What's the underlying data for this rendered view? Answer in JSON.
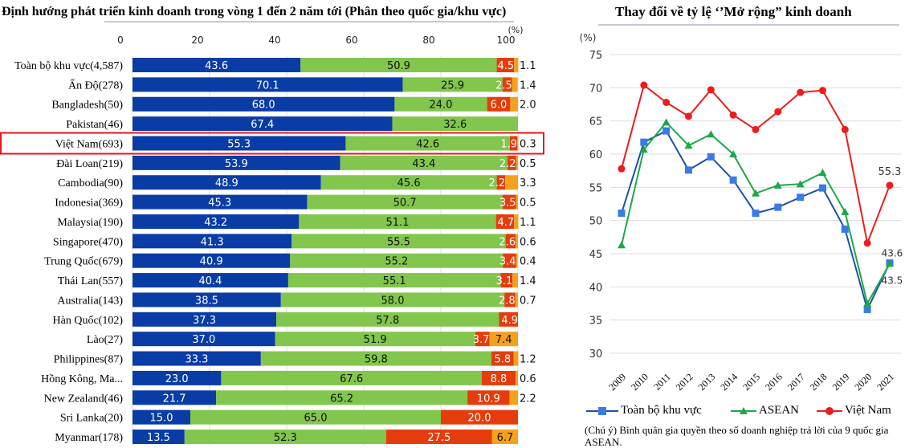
{
  "chart_data": [
    {
      "type": "bar",
      "stacked": true,
      "orientation": "horizontal",
      "title": "Định hướng phát triển kinh doanh trong vòng 1 đến 2 năm tới (Phân theo quốc gia/khu vực)",
      "unit_label": "(%)",
      "xlim": [
        0,
        100
      ],
      "xticks": [
        "0",
        "20",
        "40",
        "60",
        "80",
        "100"
      ],
      "highlight": "Việt Nam(693)",
      "colors": [
        "#0a3ca6",
        "#82c64d",
        "#e43c0c",
        "#f4a11c"
      ],
      "categories": [
        "Toàn bộ khu vực(4,587)",
        "Ấn Độ(278)",
        "Bangladesh(50)",
        "Pakistan(46)",
        "Việt Nam(693)",
        "Đài Loan(219)",
        "Cambodia(90)",
        "Indonesia(369)",
        "Malaysia(190)",
        "Singapore(470)",
        "Trung Quốc(679)",
        "Thái Lan(557)",
        "Australia(143)",
        "Hàn Quốc(102)",
        "Lào(27)",
        "Philippines(87)",
        "Hồng Kông, Ma...",
        "New Zealand(46)",
        "Sri Lanka(20)",
        "Myanmar(178)"
      ],
      "series": [
        {
          "values": [
            43.6,
            70.1,
            68.0,
            67.4,
            55.3,
            53.9,
            48.9,
            45.3,
            43.2,
            41.3,
            40.9,
            40.4,
            38.5,
            37.3,
            37.0,
            33.3,
            23.0,
            21.7,
            15.0,
            13.5
          ]
        },
        {
          "values": [
            50.9,
            25.9,
            24.0,
            32.6,
            42.6,
            43.4,
            45.6,
            50.7,
            51.1,
            55.5,
            55.2,
            55.1,
            58.0,
            57.8,
            51.9,
            59.8,
            67.6,
            65.2,
            65.0,
            52.3
          ]
        },
        {
          "values": [
            4.5,
            2.5,
            6.0,
            0,
            1.9,
            2.2,
            2.2,
            3.5,
            4.7,
            2.6,
            3.4,
            3.1,
            2.8,
            4.9,
            3.7,
            5.8,
            8.8,
            10.9,
            20.0,
            27.5
          ]
        },
        {
          "values": [
            1.1,
            1.4,
            2.0,
            0,
            0.3,
            0.5,
            3.3,
            0.5,
            1.1,
            0.6,
            0.4,
            1.4,
            0.7,
            0,
            7.4,
            1.2,
            0.6,
            2.2,
            0,
            6.7
          ]
        }
      ]
    },
    {
      "type": "line",
      "title": "Thay đổi về tỷ lệ ‘’Mở rộng” kinh doanh",
      "ylabel": "(%)",
      "ylim": [
        30,
        75
      ],
      "yticks": [
        "30",
        "35",
        "40",
        "45",
        "50",
        "55",
        "60",
        "65",
        "70",
        "75"
      ],
      "x": [
        "2009",
        "2010",
        "2011",
        "2012",
        "2013",
        "2014",
        "2015",
        "2016",
        "2017",
        "2018",
        "2019",
        "2020",
        "2021"
      ],
      "series": [
        {
          "name": "Toàn bộ khu vực",
          "color": "#1f4fa8",
          "marker": "square-x",
          "values": [
            51.1,
            61.8,
            63.5,
            57.6,
            59.6,
            56.1,
            51.1,
            52.0,
            53.5,
            54.9,
            48.7,
            36.6,
            43.6
          ],
          "end_label": "43.6"
        },
        {
          "name": "ASEAN",
          "color": "#1ca84a",
          "marker": "triangle",
          "values": [
            46.3,
            60.7,
            64.8,
            61.3,
            63.0,
            60.0,
            54.1,
            55.3,
            55.5,
            57.2,
            51.3,
            37.5,
            43.5
          ],
          "end_label": "43.5"
        },
        {
          "name": "Việt Nam",
          "color": "#ee1c1c",
          "marker": "circle",
          "values": [
            57.8,
            70.4,
            67.8,
            65.7,
            69.7,
            65.9,
            63.7,
            66.4,
            69.3,
            69.6,
            63.7,
            46.6,
            55.3
          ],
          "end_label": "55.3"
        }
      ],
      "legend": "bottom",
      "note": "(Chú ý) Bình quân gia quyền theo số doanh nghiệp trả lời của 9 quốc gia ASEAN."
    }
  ]
}
